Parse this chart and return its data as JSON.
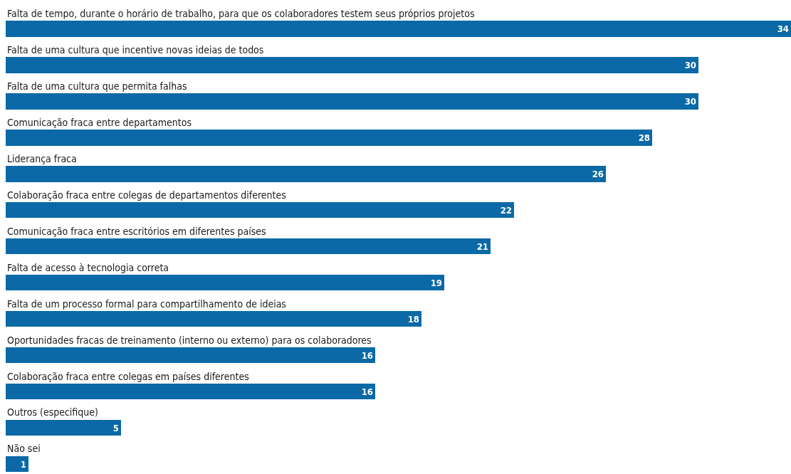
{
  "chart_data": {
    "type": "bar",
    "orientation": "horizontal",
    "categories": [
      "Falta de tempo, durante o horário de trabalho, para que os colaboradores testem seus próprios projetos",
      "Falta de uma cultura que incentive novas ideias de todos",
      "Falta de uma cultura que permita falhas",
      "Comunicação fraca entre departamentos",
      "Liderança fraca",
      "Colaboração fraca entre colegas de departamentos diferentes",
      "Comunicação fraca entre escritórios em diferentes países",
      "Falta de acesso à tecnologia correta",
      "Falta de um processo formal para compartilhamento de ideias",
      "Oportunidades fracas de treinamento (interno ou externo) para os colaboradores",
      "Colaboração fraca entre colegas em países diferentes",
      "Outros (especifique)",
      "Não sei"
    ],
    "values": [
      34,
      30,
      30,
      28,
      26,
      22,
      21,
      19,
      18,
      16,
      16,
      5,
      1
    ],
    "color": "#0a69a6",
    "data_labels": true
  }
}
